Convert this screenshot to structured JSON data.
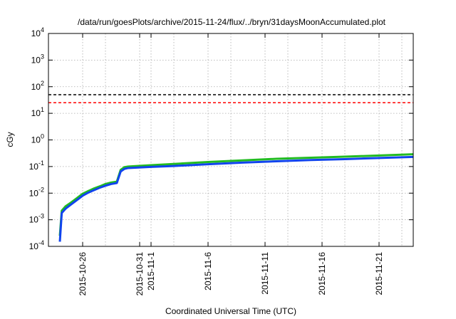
{
  "chart_data": {
    "type": "line",
    "title": "/data/run/goesPlots/archive/2015-11-24/flux/../bryn/31daysMoonAccumulated.plot",
    "xlabel": "Coordinated Universal Time (UTC)",
    "ylabel": "cGy",
    "y_scale": "log",
    "ylim": [
      0.0001,
      10000
    ],
    "x_range": [
      "2015-10-23",
      "2015-11-24"
    ],
    "grid": true,
    "y_ticks": [
      {
        "value": 0.0001,
        "base": "10",
        "exp": "-4"
      },
      {
        "value": 0.001,
        "base": "10",
        "exp": "-3"
      },
      {
        "value": 0.01,
        "base": "10",
        "exp": "-2"
      },
      {
        "value": 0.1,
        "base": "10",
        "exp": "-1"
      },
      {
        "value": 1,
        "base": "10",
        "exp": "0"
      },
      {
        "value": 10,
        "base": "10",
        "exp": "1"
      },
      {
        "value": 100,
        "base": "10",
        "exp": "2"
      },
      {
        "value": 1000,
        "base": "10",
        "exp": "3"
      },
      {
        "value": 10000,
        "base": "10",
        "exp": "4"
      }
    ],
    "x_ticks": [
      {
        "date": "2015-10-26",
        "label": "2015-10-26"
      },
      {
        "date": "2015-10-31",
        "label": "2015-10-31"
      },
      {
        "date": "2015-11-01",
        "label": "2015-11-1"
      },
      {
        "date": "2015-11-06",
        "label": "2015-11-6"
      },
      {
        "date": "2015-11-11",
        "label": "2015-11-11"
      },
      {
        "date": "2015-11-16",
        "label": "2015-11-16"
      },
      {
        "date": "2015-11-21",
        "label": "2015-11-21"
      }
    ],
    "x_grid": [
      "2015-10-26",
      "2015-10-28",
      "2015-10-31",
      "2015-11-01",
      "2015-11-03",
      "2015-11-06",
      "2015-11-08",
      "2015-11-11",
      "2015-11-13",
      "2015-11-16",
      "2015-11-18",
      "2015-11-21",
      "2015-11-23"
    ],
    "thresholds": [
      {
        "value": 50,
        "color": "#000000",
        "style": "dashed"
      },
      {
        "value": 25,
        "color": "#ff0000",
        "style": "dashed"
      }
    ],
    "series": [
      {
        "color": "#22bb22",
        "points": [
          [
            "2015-10-24 00:00",
            0.00025
          ],
          [
            "2015-10-24 04:00",
            0.0022
          ],
          [
            "2015-10-24 12:00",
            0.0032
          ],
          [
            "2015-10-25 00:00",
            0.0045
          ],
          [
            "2015-10-25 12:00",
            0.0065
          ],
          [
            "2015-10-26 00:00",
            0.0095
          ],
          [
            "2015-10-26 12:00",
            0.012
          ],
          [
            "2015-10-27 00:00",
            0.015
          ],
          [
            "2015-10-27 12:00",
            0.018
          ],
          [
            "2015-10-28 00:00",
            0.022
          ],
          [
            "2015-10-28 12:00",
            0.025
          ],
          [
            "2015-10-29 00:00",
            0.027
          ],
          [
            "2015-10-29 08:00",
            0.075
          ],
          [
            "2015-10-29 16:00",
            0.095
          ],
          [
            "2015-10-30 00:00",
            0.1
          ],
          [
            "2015-11-01 00:00",
            0.112
          ],
          [
            "2015-11-03 00:00",
            0.125
          ],
          [
            "2015-11-06 00:00",
            0.148
          ],
          [
            "2015-11-09 00:00",
            0.17
          ],
          [
            "2015-11-12 00:00",
            0.195
          ],
          [
            "2015-11-15 00:00",
            0.215
          ],
          [
            "2015-11-18 00:00",
            0.235
          ],
          [
            "2015-11-21 00:00",
            0.26
          ],
          [
            "2015-11-24 00:00",
            0.29
          ]
        ]
      },
      {
        "color": "#1144ee",
        "points": [
          [
            "2015-10-24 00:00",
            0.00015
          ],
          [
            "2015-10-24 04:00",
            0.0018
          ],
          [
            "2015-10-24 12:00",
            0.0026
          ],
          [
            "2015-10-25 00:00",
            0.0038
          ],
          [
            "2015-10-25 12:00",
            0.0055
          ],
          [
            "2015-10-26 00:00",
            0.008
          ],
          [
            "2015-10-26 12:00",
            0.0105
          ],
          [
            "2015-10-27 00:00",
            0.013
          ],
          [
            "2015-10-27 12:00",
            0.016
          ],
          [
            "2015-10-28 00:00",
            0.019
          ],
          [
            "2015-10-28 12:00",
            0.022
          ],
          [
            "2015-10-29 00:00",
            0.024
          ],
          [
            "2015-10-29 08:00",
            0.065
          ],
          [
            "2015-10-29 16:00",
            0.082
          ],
          [
            "2015-10-30 00:00",
            0.088
          ],
          [
            "2015-11-01 00:00",
            0.097
          ],
          [
            "2015-11-03 00:00",
            0.105
          ],
          [
            "2015-11-06 00:00",
            0.122
          ],
          [
            "2015-11-09 00:00",
            0.14
          ],
          [
            "2015-11-12 00:00",
            0.158
          ],
          [
            "2015-11-15 00:00",
            0.175
          ],
          [
            "2015-11-18 00:00",
            0.19
          ],
          [
            "2015-11-21 00:00",
            0.21
          ],
          [
            "2015-11-24 00:00",
            0.23
          ]
        ]
      }
    ]
  }
}
